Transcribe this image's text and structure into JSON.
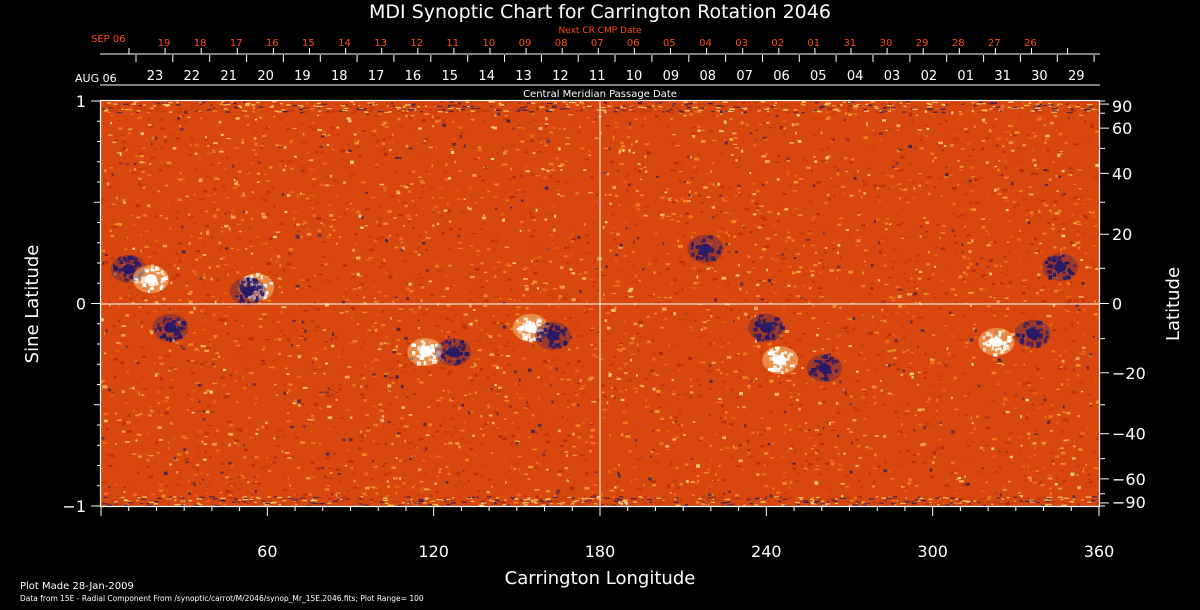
{
  "chart_data": {
    "type": "heatmap",
    "title": "MDI Synoptic Chart for Carrington Rotation 2046",
    "xlabel": "Carrington Longitude",
    "ylabel_left": "Sine Latitude",
    "ylabel_right": "Latitude",
    "xlim": [
      0,
      360
    ],
    "ylim": [
      -1,
      1
    ],
    "x_ticks": [
      60,
      120,
      180,
      240,
      300,
      360
    ],
    "y_ticks_left": [
      "1",
      "0",
      "−1"
    ],
    "y_ticks_right": [
      90,
      60,
      40,
      20,
      0,
      -20,
      -40,
      -60,
      -90
    ],
    "y_ticks_right_labels": [
      "90",
      "60",
      "40",
      "20",
      "0",
      "−20",
      "−40",
      "−60",
      "−90"
    ],
    "top_axis_1": {
      "caption": "Next CR CMP Date",
      "start_label": "SEP 06",
      "dates": [
        "19",
        "18",
        "17",
        "16",
        "15",
        "14",
        "13",
        "12",
        "11",
        "10",
        "09",
        "08",
        "07",
        "06",
        "05",
        "04",
        "03",
        "02",
        "01",
        "31",
        "30",
        "29",
        "28",
        "27",
        "26"
      ]
    },
    "top_axis_2": {
      "caption": "Central Meridian Passage Date",
      "start_label": "AUG 06",
      "dates": [
        "23",
        "22",
        "21",
        "20",
        "19",
        "18",
        "17",
        "16",
        "15",
        "14",
        "13",
        "12",
        "11",
        "10",
        "09",
        "08",
        "07",
        "06",
        "05",
        "04",
        "03",
        "02",
        "01",
        "31",
        "30",
        "29"
      ]
    },
    "field_features": [
      {
        "lon": 117,
        "sinlat": -0.24,
        "polarity": "positive"
      },
      {
        "lon": 127,
        "sinlat": -0.24,
        "polarity": "negative"
      },
      {
        "lon": 155,
        "sinlat": -0.12,
        "polarity": "positive"
      },
      {
        "lon": 163,
        "sinlat": -0.16,
        "polarity": "negative"
      },
      {
        "lon": 10,
        "sinlat": 0.17,
        "polarity": "negative"
      },
      {
        "lon": 18,
        "sinlat": 0.12,
        "polarity": "positive"
      },
      {
        "lon": 56,
        "sinlat": 0.08,
        "polarity": "positive"
      },
      {
        "lon": 53,
        "sinlat": 0.06,
        "polarity": "negative"
      },
      {
        "lon": 240,
        "sinlat": -0.12,
        "polarity": "negative"
      },
      {
        "lon": 245,
        "sinlat": -0.28,
        "polarity": "positive"
      },
      {
        "lon": 261,
        "sinlat": -0.32,
        "polarity": "negative"
      },
      {
        "lon": 323,
        "sinlat": -0.19,
        "polarity": "positive"
      },
      {
        "lon": 336,
        "sinlat": -0.15,
        "polarity": "negative"
      },
      {
        "lon": 346,
        "sinlat": 0.18,
        "polarity": "negative"
      },
      {
        "lon": 25,
        "sinlat": -0.12,
        "polarity": "negative"
      },
      {
        "lon": 218,
        "sinlat": 0.27,
        "polarity": "negative"
      }
    ],
    "plot_range": 100,
    "colors": {
      "background": "#000000",
      "field_base": "#e04f10",
      "positive": "#ffffff",
      "negative": "#2a1a66",
      "axis": "#ffffff",
      "date_red": "#ff4a14"
    }
  },
  "footer": {
    "plot_made": "Plot Made 28-Jan-2009",
    "data_source": "Data from 15E - Radial Component From /synoptic/carrot/M/2046/synop_Mr_15E.2046.fits; Plot Range=  100"
  }
}
